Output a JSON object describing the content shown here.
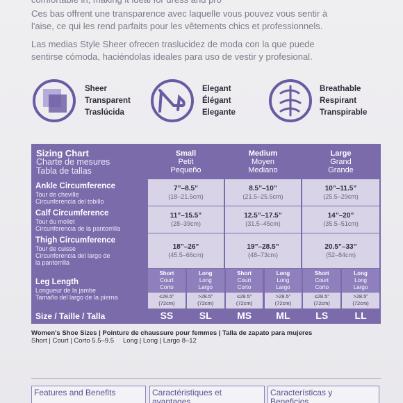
{
  "intro": {
    "cut_line": "comfortable in, making it ideal for dress and pro",
    "fr": [
      "Ces bas offrent une transparence avec laquelle vous pouvez vous sentir à",
      "l'aise, ce qui les rend parfaits pour les vêtements chics et professionnels."
    ],
    "es": [
      "Las medias Style Sheer ofrecen traslucidez de moda con la que puede",
      "sentirse cómoda, haciéndolas ideales para uso de vestir y profesional."
    ]
  },
  "features": [
    {
      "labels": [
        "Sheer",
        "Transparent",
        "Traslúcida"
      ]
    },
    {
      "labels": [
        "Elegant",
        "Élégant",
        "Elegante"
      ]
    },
    {
      "labels": [
        "Breathable",
        "Respirant",
        "Transpirable"
      ]
    }
  ],
  "sizing_chart": {
    "title": [
      "Sizing Chart",
      "Charte de mesures",
      "Tabla de tallas"
    ],
    "sizes": [
      [
        "Small",
        "Petit",
        "Pequeño"
      ],
      [
        "Medium",
        "Moyen",
        "Mediano"
      ],
      [
        "Large",
        "Grand",
        "Grande"
      ]
    ],
    "rows": [
      {
        "label": [
          "Ankle Circumference",
          "Tour de cheville",
          "Circunferencia del tobillo"
        ],
        "values": [
          [
            "7”–8.5”",
            "(18–21.5cm)"
          ],
          [
            "8.5”–10”",
            "(21.5–25.5cm)"
          ],
          [
            "10”–11.5”",
            "(25.5–29cm)"
          ]
        ]
      },
      {
        "label": [
          "Calf Circumference",
          "Tour du mollet",
          "Circunferencia de la pantorrilla"
        ],
        "values": [
          [
            "11”–15.5”",
            "(28–39cm)"
          ],
          [
            "12.5”–17.5”",
            "(31.5–45cm)"
          ],
          [
            "14”–20”",
            "(35.5–51cm)"
          ]
        ]
      },
      {
        "label": [
          "Thigh Circumference",
          "Tour de cuisse",
          "Circunferencia del largo de",
          "la pantorrilla"
        ],
        "values": [
          [
            "18”–26”",
            "(45.5–66cm)"
          ],
          [
            "19”–28.5”",
            "(48–73cm)"
          ],
          [
            "20.5”–33”",
            "(52–84cm)"
          ]
        ]
      }
    ],
    "leg_length": {
      "label": [
        "Leg Length",
        "Longueur de la jambe",
        "Tamaño del largo de la pierna"
      ],
      "lengths": [
        [
          "Short",
          "Court",
          "Corto"
        ],
        [
          "Long",
          "Long",
          "Largo"
        ]
      ],
      "ranges": [
        [
          "≤28.5”",
          "(72cm)"
        ],
        [
          ">28.5”",
          "(72cm)"
        ]
      ]
    },
    "size_row": {
      "label": "Size / Taille / Talla",
      "codes": [
        "SS",
        "SL",
        "MS",
        "ML",
        "LS",
        "LL"
      ]
    }
  },
  "shoe_note": {
    "title": "Women's Shoe Sizes | Pointure de chaussure pour femmes | Talla de zapato para mujeres",
    "short": "Short | Court | Corto 5.5–9.5",
    "long": "Long | Long | Largo 8–12"
  },
  "bottom_headers": [
    [
      "Features and Benefits"
    ],
    [
      "Caractéristiques et",
      "avantages"
    ],
    [
      "Características y",
      "Beneficios"
    ]
  ]
}
